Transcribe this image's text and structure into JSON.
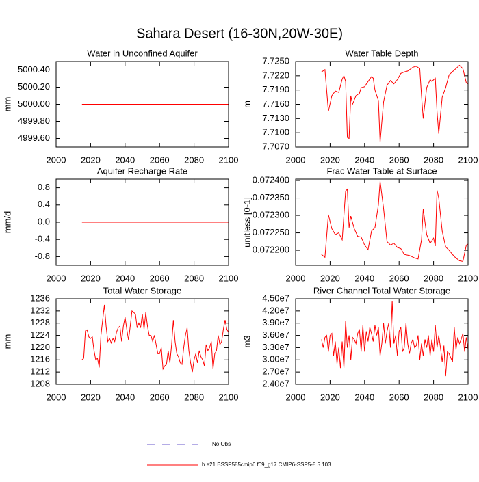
{
  "title": "Sahara Desert (16-30N,20W-30E)",
  "legend": [
    {
      "name": "No Obs",
      "color": "#6a5acd",
      "dash": true
    },
    {
      "name": "b.e21.BSSP585cmip6.f09_g17.CMIP6-SSP5-8.5.103",
      "color": "#ff0000",
      "dash": false
    }
  ],
  "chart_data": [
    {
      "type": "line",
      "title": "Water in Unconfined Aquifer",
      "ylabel": "mm",
      "x": [
        2015,
        2100
      ],
      "series": [
        {
          "color": "#ff0000",
          "values": [
            5000,
            5000
          ]
        }
      ],
      "xlim": [
        2000,
        2100
      ],
      "xticks": [
        2000,
        2020,
        2040,
        2060,
        2080,
        2100
      ],
      "ylim": [
        4999.5,
        5000.5
      ],
      "yticks": [
        {
          "value": 4999.6,
          "label": "4999.60"
        },
        {
          "value": 4999.8,
          "label": "4999.80"
        },
        {
          "value": 5000,
          "label": "5000.00"
        },
        {
          "value": 5000.2,
          "label": "5000.20"
        },
        {
          "value": 5000.4,
          "label": "5000.40"
        }
      ]
    },
    {
      "type": "line",
      "title": "Water Table Depth",
      "ylabel": "m",
      "x": [
        2015,
        2017,
        2019,
        2021,
        2023,
        2025,
        2027,
        2028,
        2029,
        2030,
        2031,
        2032,
        2033,
        2035,
        2037,
        2038,
        2040,
        2042,
        2044,
        2045,
        2046,
        2048,
        2049,
        2051,
        2053,
        2055,
        2057,
        2059,
        2061,
        2063,
        2065,
        2068,
        2070,
        2072,
        2073,
        2074,
        2076,
        2078,
        2079,
        2081,
        2082,
        2083,
        2085,
        2087,
        2089,
        2092,
        2095,
        2097,
        2099,
        2100
      ],
      "series": [
        {
          "color": "#ff0000",
          "values": [
            7.7228,
            7.7233,
            7.7145,
            7.7178,
            7.7188,
            7.7185,
            7.7213,
            7.722,
            7.7208,
            7.709,
            7.7088,
            7.7178,
            7.716,
            7.7178,
            7.7183,
            7.7195,
            7.7197,
            7.7208,
            7.7218,
            7.7215,
            7.719,
            7.7168,
            7.708,
            7.7165,
            7.72,
            7.721,
            7.7203,
            7.7212,
            7.7225,
            7.7228,
            7.723,
            7.7238,
            7.724,
            7.7235,
            7.7178,
            7.713,
            7.7195,
            7.7212,
            7.7208,
            7.7215,
            7.7145,
            7.7098,
            7.7175,
            7.7195,
            7.7222,
            7.7232,
            7.7242,
            7.7235,
            7.7205,
            7.7203
          ]
        }
      ],
      "xlim": [
        2000,
        2100
      ],
      "xticks": [
        2000,
        2020,
        2040,
        2060,
        2080,
        2100
      ],
      "ylim": [
        7.707,
        7.725
      ],
      "yticks": [
        {
          "value": 7.707,
          "label": "7.7070"
        },
        {
          "value": 7.71,
          "label": "7.7100"
        },
        {
          "value": 7.713,
          "label": "7.7130"
        },
        {
          "value": 7.716,
          "label": "7.7160"
        },
        {
          "value": 7.719,
          "label": "7.7190"
        },
        {
          "value": 7.722,
          "label": "7.7220"
        },
        {
          "value": 7.725,
          "label": "7.7250"
        }
      ]
    },
    {
      "type": "line",
      "title": "Aquifer Recharge Rate",
      "ylabel": "mm/d",
      "x": [
        2015,
        2100
      ],
      "series": [
        {
          "color": "#ff0000",
          "values": [
            0,
            0
          ]
        }
      ],
      "xlim": [
        2000,
        2100
      ],
      "xticks": [
        2000,
        2020,
        2040,
        2060,
        2080,
        2100
      ],
      "ylim": [
        -1,
        1
      ],
      "yticks": [
        -0.8,
        -0.4,
        {
          "value": 0,
          "label": "0.0"
        },
        0.4,
        0.8
      ]
    },
    {
      "type": "line",
      "title": "Frac Water Table at Surface",
      "ylabel": "unitless [0-1]",
      "x": [
        2015,
        2017,
        2019,
        2021,
        2023,
        2025,
        2027,
        2029,
        2030,
        2031,
        2032,
        2034,
        2036,
        2038,
        2040,
        2042,
        2044,
        2046,
        2048,
        2049,
        2051,
        2053,
        2055,
        2057,
        2059,
        2061,
        2063,
        2066,
        2069,
        2071,
        2073,
        2074,
        2076,
        2078,
        2080,
        2081,
        2082,
        2083,
        2085,
        2087,
        2089,
        2092,
        2095,
        2097,
        2099,
        2100
      ],
      "series": [
        {
          "color": "#ff0000",
          "values": [
            0.072188,
            0.07218,
            0.072302,
            0.072262,
            0.072245,
            0.07225,
            0.07223,
            0.07237,
            0.072375,
            0.072265,
            0.072298,
            0.072262,
            0.07224,
            0.072238,
            0.072215,
            0.072202,
            0.072255,
            0.072265,
            0.07233,
            0.072398,
            0.07232,
            0.072225,
            0.072215,
            0.07222,
            0.072208,
            0.072205,
            0.072188,
            0.072185,
            0.072178,
            0.072175,
            0.07223,
            0.072318,
            0.072245,
            0.07222,
            0.072235,
            0.072212,
            0.072372,
            0.07235,
            0.072255,
            0.07221,
            0.0722,
            0.072182,
            0.07217,
            0.072168,
            0.072215,
            0.072218
          ]
        }
      ],
      "xlim": [
        2000,
        2100
      ],
      "xticks": [
        2000,
        2020,
        2040,
        2060,
        2080,
        2100
      ],
      "ylim": [
        0.072157,
        0.072404
      ],
      "yticks": [
        {
          "value": 0.0722,
          "label": "0.072200"
        },
        {
          "value": 0.07225,
          "label": "0.072250"
        },
        {
          "value": 0.0723,
          "label": "0.072300"
        },
        {
          "value": 0.07235,
          "label": "0.072350"
        },
        {
          "value": 0.0724,
          "label": "0.072400"
        }
      ]
    },
    {
      "type": "line",
      "title": "Total Water Storage",
      "ylabel": "mm",
      "x": [
        2015,
        2016,
        2017,
        2018,
        2019,
        2020,
        2021,
        2022,
        2023,
        2024,
        2025,
        2026,
        2027,
        2028,
        2029,
        2030,
        2031,
        2032,
        2033,
        2034,
        2035,
        2036,
        2037,
        2038,
        2039,
        2040,
        2041,
        2042,
        2043,
        2044,
        2045,
        2046,
        2047,
        2048,
        2049,
        2050,
        2051,
        2052,
        2053,
        2054,
        2055,
        2056,
        2057,
        2058,
        2059,
        2060,
        2061,
        2062,
        2063,
        2064,
        2065,
        2066,
        2067,
        2068,
        2069,
        2070,
        2071,
        2072,
        2073,
        2074,
        2075,
        2076,
        2077,
        2078,
        2079,
        2080,
        2081,
        2082,
        2083,
        2084,
        2085,
        2086,
        2087,
        2088,
        2089,
        2090,
        2091,
        2092,
        2093,
        2094,
        2095,
        2096,
        2097,
        2098,
        2099,
        2100
      ],
      "series": [
        {
          "color": "#ff0000",
          "values": [
            1216,
            1216.5,
            1225.5,
            1225.8,
            1223.5,
            1223,
            1223.5,
            1219,
            1216,
            1216.5,
            1213.5,
            1224,
            1229,
            1234,
            1227,
            1222,
            1223,
            1221.5,
            1223,
            1222,
            1225,
            1226.5,
            1227,
            1222,
            1227,
            1230,
            1226,
            1222.5,
            1227,
            1232,
            1231.5,
            1231,
            1226.5,
            1228,
            1226.5,
            1231,
            1226,
            1231.5,
            1227,
            1224,
            1224,
            1222,
            1224,
            1221,
            1218,
            1218,
            1220,
            1213,
            1214,
            1214.5,
            1219,
            1215,
            1221,
            1229,
            1222,
            1218,
            1217,
            1215,
            1214.5,
            1220,
            1224,
            1226.5,
            1219,
            1215,
            1212,
            1216,
            1218,
            1215,
            1219,
            1217,
            1216,
            1214,
            1221,
            1219,
            1220,
            1222,
            1213,
            1218,
            1219,
            1224,
            1221,
            1222,
            1226,
            1229,
            1226,
            1225
          ]
        }
      ],
      "xlim": [
        2000,
        2100
      ],
      "xticks": [
        2000,
        2020,
        2040,
        2060,
        2080,
        2100
      ],
      "ylim": [
        1208,
        1236
      ],
      "yticks": [
        1208,
        1212,
        1216,
        1220,
        1224,
        1228,
        1232,
        1236
      ]
    },
    {
      "type": "line",
      "title": "River Channel Total Water Storage",
      "ylabel": "m3",
      "x": [
        2015,
        2016,
        2017,
        2018,
        2019,
        2020,
        2021,
        2022,
        2023,
        2024,
        2025,
        2026,
        2027,
        2028,
        2029,
        2030,
        2031,
        2032,
        2033,
        2034,
        2035,
        2036,
        2037,
        2038,
        2039,
        2040,
        2041,
        2042,
        2043,
        2044,
        2045,
        2046,
        2047,
        2048,
        2049,
        2050,
        2051,
        2052,
        2053,
        2054,
        2055,
        2056,
        2057,
        2058,
        2059,
        2060,
        2061,
        2062,
        2063,
        2064,
        2065,
        2066,
        2067,
        2068,
        2069,
        2070,
        2071,
        2072,
        2073,
        2074,
        2075,
        2076,
        2077,
        2078,
        2079,
        2080,
        2081,
        2082,
        2083,
        2084,
        2085,
        2086,
        2087,
        2088,
        2089,
        2090,
        2091,
        2092,
        2093,
        2094,
        2095,
        2096,
        2097,
        2098,
        2099,
        2100
      ],
      "series": [
        {
          "color": "#ff0000",
          "values": [
            35000000.0,
            33000000.0,
            35500000.0,
            36000000.0,
            32000000.0,
            36000000.0,
            36500000.0,
            31000000.0,
            34500000.0,
            29000000.0,
            33000000.0,
            28000000.0,
            34500000.0,
            28000000.0,
            39500000.0,
            33000000.0,
            36000000.0,
            30000000.0,
            35500000.0,
            35000000.0,
            34000000.0,
            36500000.0,
            37500000.0,
            32000000.0,
            38500000.0,
            32000000.0,
            37000000.0,
            34500000.0,
            38000000.0,
            36500000.0,
            34500000.0,
            38500000.0,
            36000000.0,
            38000000.0,
            31000000.0,
            34000000.0,
            39000000.0,
            34000000.0,
            37000000.0,
            39000000.0,
            33000000.0,
            44500000.0,
            34000000.0,
            36000000.0,
            31000000.0,
            37000000.0,
            38000000.0,
            32000000.0,
            33000000.0,
            39000000.0,
            34000000.0,
            31500000.0,
            34000000.0,
            35000000.0,
            33000000.0,
            33500000.0,
            36000000.0,
            30000000.0,
            34000000.0,
            31000000.0,
            35000000.0,
            33000000.0,
            36000000.0,
            31000000.0,
            35000000.0,
            32000000.0,
            38500000.0,
            33000000.0,
            36000000.0,
            33000000.0,
            29500000.0,
            33500000.0,
            26000000.0,
            32000000.0,
            31500000.0,
            30500000.0,
            29500000.0,
            38000000.0,
            32500000.0,
            35500000.0,
            34000000.0,
            35000000.0,
            36500000.0,
            32000000.0,
            35500000.0,
            32500000.0
          ]
        }
      ],
      "xlim": [
        2000,
        2100
      ],
      "xticks": [
        2000,
        2020,
        2040,
        2060,
        2080,
        2100
      ],
      "ylim": [
        24000000.0,
        45000000.0
      ],
      "yticks": [
        {
          "value": 24000000.0,
          "label": "2.40e7"
        },
        {
          "value": 27000000.0,
          "label": "2.70e7"
        },
        {
          "value": 30000000.0,
          "label": "3.00e7"
        },
        {
          "value": 33000000.0,
          "label": "3.30e7"
        },
        {
          "value": 36000000.0,
          "label": "3.60e7"
        },
        {
          "value": 39000000.0,
          "label": "3.90e7"
        },
        {
          "value": 42000000.0,
          "label": "4.20e7"
        },
        {
          "value": 45000000.0,
          "label": "4.50e7"
        }
      ]
    }
  ]
}
